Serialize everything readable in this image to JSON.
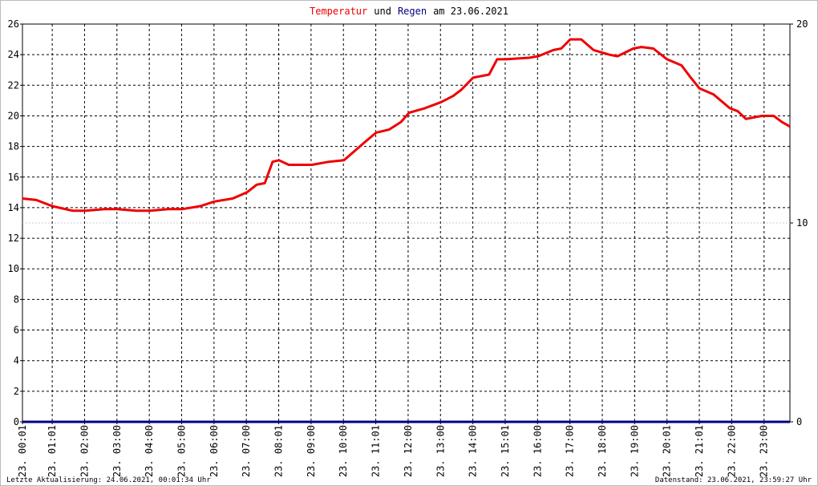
{
  "chart_data": {
    "type": "line",
    "title_joiner": "und",
    "title_suffix": "am 23.06.2021",
    "footer_left": "Letzte Aktualisierung: 24.06.2021, 00:01:34 Uhr",
    "footer_right": "Datenstand: 23.06.2021, 23:59:27 Uhr",
    "xlim": [
      0.08,
      23.8
    ],
    "xticks": [
      {
        "value": 0.08,
        "label": "23. 00:01"
      },
      {
        "value": 1.0,
        "label": "23. 01:01"
      },
      {
        "value": 2.0,
        "label": "23. 02:00"
      },
      {
        "value": 3.0,
        "label": "23. 03:00"
      },
      {
        "value": 4.0,
        "label": "23. 04:00"
      },
      {
        "value": 5.0,
        "label": "23. 05:00"
      },
      {
        "value": 6.0,
        "label": "23. 06:00"
      },
      {
        "value": 7.0,
        "label": "23. 07:00"
      },
      {
        "value": 8.0,
        "label": "23. 08:01"
      },
      {
        "value": 9.0,
        "label": "23. 09:00"
      },
      {
        "value": 10.0,
        "label": "23. 10:00"
      },
      {
        "value": 11.0,
        "label": "23. 11:01"
      },
      {
        "value": 12.0,
        "label": "23. 12:00"
      },
      {
        "value": 13.0,
        "label": "23. 13:00"
      },
      {
        "value": 14.0,
        "label": "23. 14:00"
      },
      {
        "value": 15.0,
        "label": "23. 15:01"
      },
      {
        "value": 16.0,
        "label": "23. 16:00"
      },
      {
        "value": 17.0,
        "label": "23. 17:00"
      },
      {
        "value": 18.0,
        "label": "23. 18:00"
      },
      {
        "value": 19.0,
        "label": "23. 19:00"
      },
      {
        "value": 20.0,
        "label": "23. 20:01"
      },
      {
        "value": 21.0,
        "label": "23. 21:01"
      },
      {
        "value": 22.0,
        "label": "23. 22:00"
      },
      {
        "value": 23.0,
        "label": "23. 23:00"
      }
    ],
    "ylim": [
      0,
      26
    ],
    "yticks": [
      0,
      2,
      4,
      6,
      8,
      10,
      12,
      14,
      16,
      18,
      20,
      22,
      24,
      26
    ],
    "y2lim": [
      0,
      20
    ],
    "y2ticks": [
      0,
      10,
      20
    ],
    "grid": true,
    "series": [
      {
        "name": "Temperatur",
        "color": "#ee0000",
        "x": [
          0.08,
          0.51,
          1.0,
          1.62,
          2.02,
          2.61,
          3.01,
          3.6,
          4.02,
          4.59,
          5.01,
          5.58,
          6.01,
          6.58,
          7.02,
          7.32,
          7.57,
          7.81,
          8.01,
          8.31,
          9.03,
          9.55,
          10.02,
          10.29,
          10.67,
          11.01,
          11.41,
          11.78,
          12.03,
          12.52,
          13.02,
          13.39,
          13.64,
          14.01,
          14.5,
          14.75,
          15.02,
          15.74,
          16.02,
          16.49,
          16.73,
          17.01,
          17.35,
          17.73,
          18.22,
          18.47,
          18.96,
          19.21,
          19.58,
          20.0,
          20.45,
          20.7,
          21.0,
          21.44,
          21.94,
          22.19,
          22.44,
          22.93,
          23.3,
          23.55,
          23.8
        ],
        "values": [
          14.6,
          14.5,
          14.1,
          13.8,
          13.8,
          13.9,
          13.9,
          13.8,
          13.8,
          13.9,
          13.9,
          14.1,
          14.4,
          14.6,
          15.0,
          15.5,
          15.6,
          17.0,
          17.1,
          16.8,
          16.8,
          17.0,
          17.1,
          17.6,
          18.3,
          18.9,
          19.1,
          19.6,
          20.2,
          20.5,
          20.9,
          21.3,
          21.7,
          22.5,
          22.7,
          23.7,
          23.7,
          23.8,
          23.9,
          24.3,
          24.4,
          25.0,
          25.0,
          24.3,
          24.0,
          23.9,
          24.4,
          24.5,
          24.4,
          23.7,
          23.3,
          22.6,
          21.8,
          21.4,
          20.5,
          20.3,
          19.8,
          20.0,
          20.0,
          19.6,
          19.3
        ]
      },
      {
        "name": "Regen",
        "color": "#000080",
        "axis": "y2",
        "x": [
          0.08,
          23.8
        ],
        "values": [
          0,
          0
        ]
      }
    ]
  }
}
